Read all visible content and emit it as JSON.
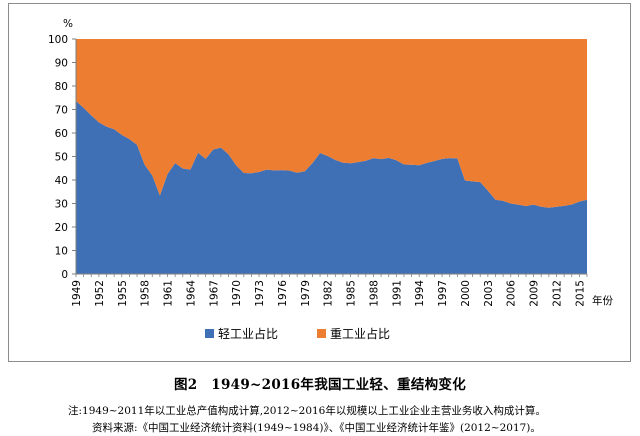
{
  "chart_data": {
    "type": "area",
    "stacked": true,
    "percent_stacked": true,
    "ylabel": "%",
    "xlabel": "年份",
    "ylim": [
      0,
      100
    ],
    "yticks": [
      0,
      10,
      20,
      30,
      40,
      50,
      60,
      70,
      80,
      90,
      100
    ],
    "xlim": [
      1949,
      2016
    ],
    "xticks": [
      1949,
      1952,
      1955,
      1958,
      1961,
      1964,
      1967,
      1970,
      1973,
      1976,
      1979,
      1982,
      1985,
      1988,
      1991,
      1994,
      1997,
      2000,
      2003,
      2006,
      2009,
      2012,
      2015
    ],
    "grid": false,
    "legend_position": "bottom",
    "x": [
      1949,
      1950,
      1951,
      1952,
      1953,
      1954,
      1955,
      1956,
      1957,
      1958,
      1959,
      1960,
      1961,
      1962,
      1963,
      1964,
      1965,
      1966,
      1967,
      1968,
      1969,
      1970,
      1971,
      1972,
      1973,
      1974,
      1975,
      1976,
      1977,
      1978,
      1979,
      1980,
      1981,
      1982,
      1983,
      1984,
      1985,
      1986,
      1987,
      1988,
      1989,
      1990,
      1991,
      1992,
      1993,
      1994,
      1995,
      1996,
      1997,
      1998,
      1999,
      2000,
      2001,
      2002,
      2003,
      2004,
      2005,
      2006,
      2007,
      2008,
      2009,
      2010,
      2011,
      2012,
      2013,
      2014,
      2015,
      2016
    ],
    "series": [
      {
        "name": "轻工业占比",
        "color": "#3f6fb5",
        "values": [
          73.6,
          70.7,
          67.5,
          64.5,
          62.7,
          61.6,
          59.2,
          57.4,
          55.0,
          46.5,
          41.9,
          33.4,
          42.5,
          47.2,
          44.9,
          44.4,
          51.6,
          49.0,
          53.0,
          53.8,
          50.9,
          46.2,
          43.0,
          42.9,
          43.4,
          44.4,
          44.1,
          44.2,
          44.0,
          43.1,
          43.7,
          47.2,
          51.5,
          50.2,
          48.5,
          47.4,
          47.1,
          47.6,
          48.2,
          49.3,
          48.9,
          49.4,
          48.4,
          46.6,
          46.5,
          46.3,
          47.3,
          48.1,
          49.0,
          49.3,
          49.2,
          39.8,
          39.4,
          39.1,
          35.5,
          31.6,
          31.1,
          30.0,
          29.5,
          28.9,
          29.5,
          28.6,
          28.2,
          28.6,
          29.0,
          29.6,
          30.8,
          31.6
        ]
      },
      {
        "name": "重工业占比",
        "color": "#ed7d31",
        "values": [
          26.4,
          29.3,
          32.5,
          35.5,
          37.3,
          38.4,
          40.8,
          42.6,
          45.0,
          53.5,
          58.1,
          66.6,
          57.5,
          52.8,
          55.1,
          55.6,
          48.4,
          51.0,
          47.0,
          46.2,
          49.1,
          53.8,
          57.0,
          57.1,
          56.6,
          55.6,
          55.9,
          55.8,
          56.0,
          56.9,
          56.3,
          52.8,
          48.5,
          49.8,
          51.5,
          52.6,
          52.9,
          52.4,
          51.8,
          50.7,
          51.1,
          50.6,
          51.6,
          53.4,
          53.5,
          53.7,
          52.7,
          51.9,
          51.0,
          50.7,
          50.8,
          60.2,
          60.6,
          60.9,
          64.5,
          68.4,
          68.9,
          70.0,
          70.5,
          71.1,
          70.5,
          71.4,
          71.8,
          71.4,
          71.0,
          70.4,
          69.2,
          68.4
        ]
      }
    ]
  },
  "figure": {
    "title": "图2　1949~2016年我国工业轻、重结构变化",
    "note": "注:1949~2011年以工业总产值构成计算,2012~2016年以规模以上工业企业主营业务收入构成计算。",
    "source": "资料来源:《中国工业经济统计资料(1949~1984)》、《中国工业经济统计年鉴》(2012~2017)。"
  }
}
